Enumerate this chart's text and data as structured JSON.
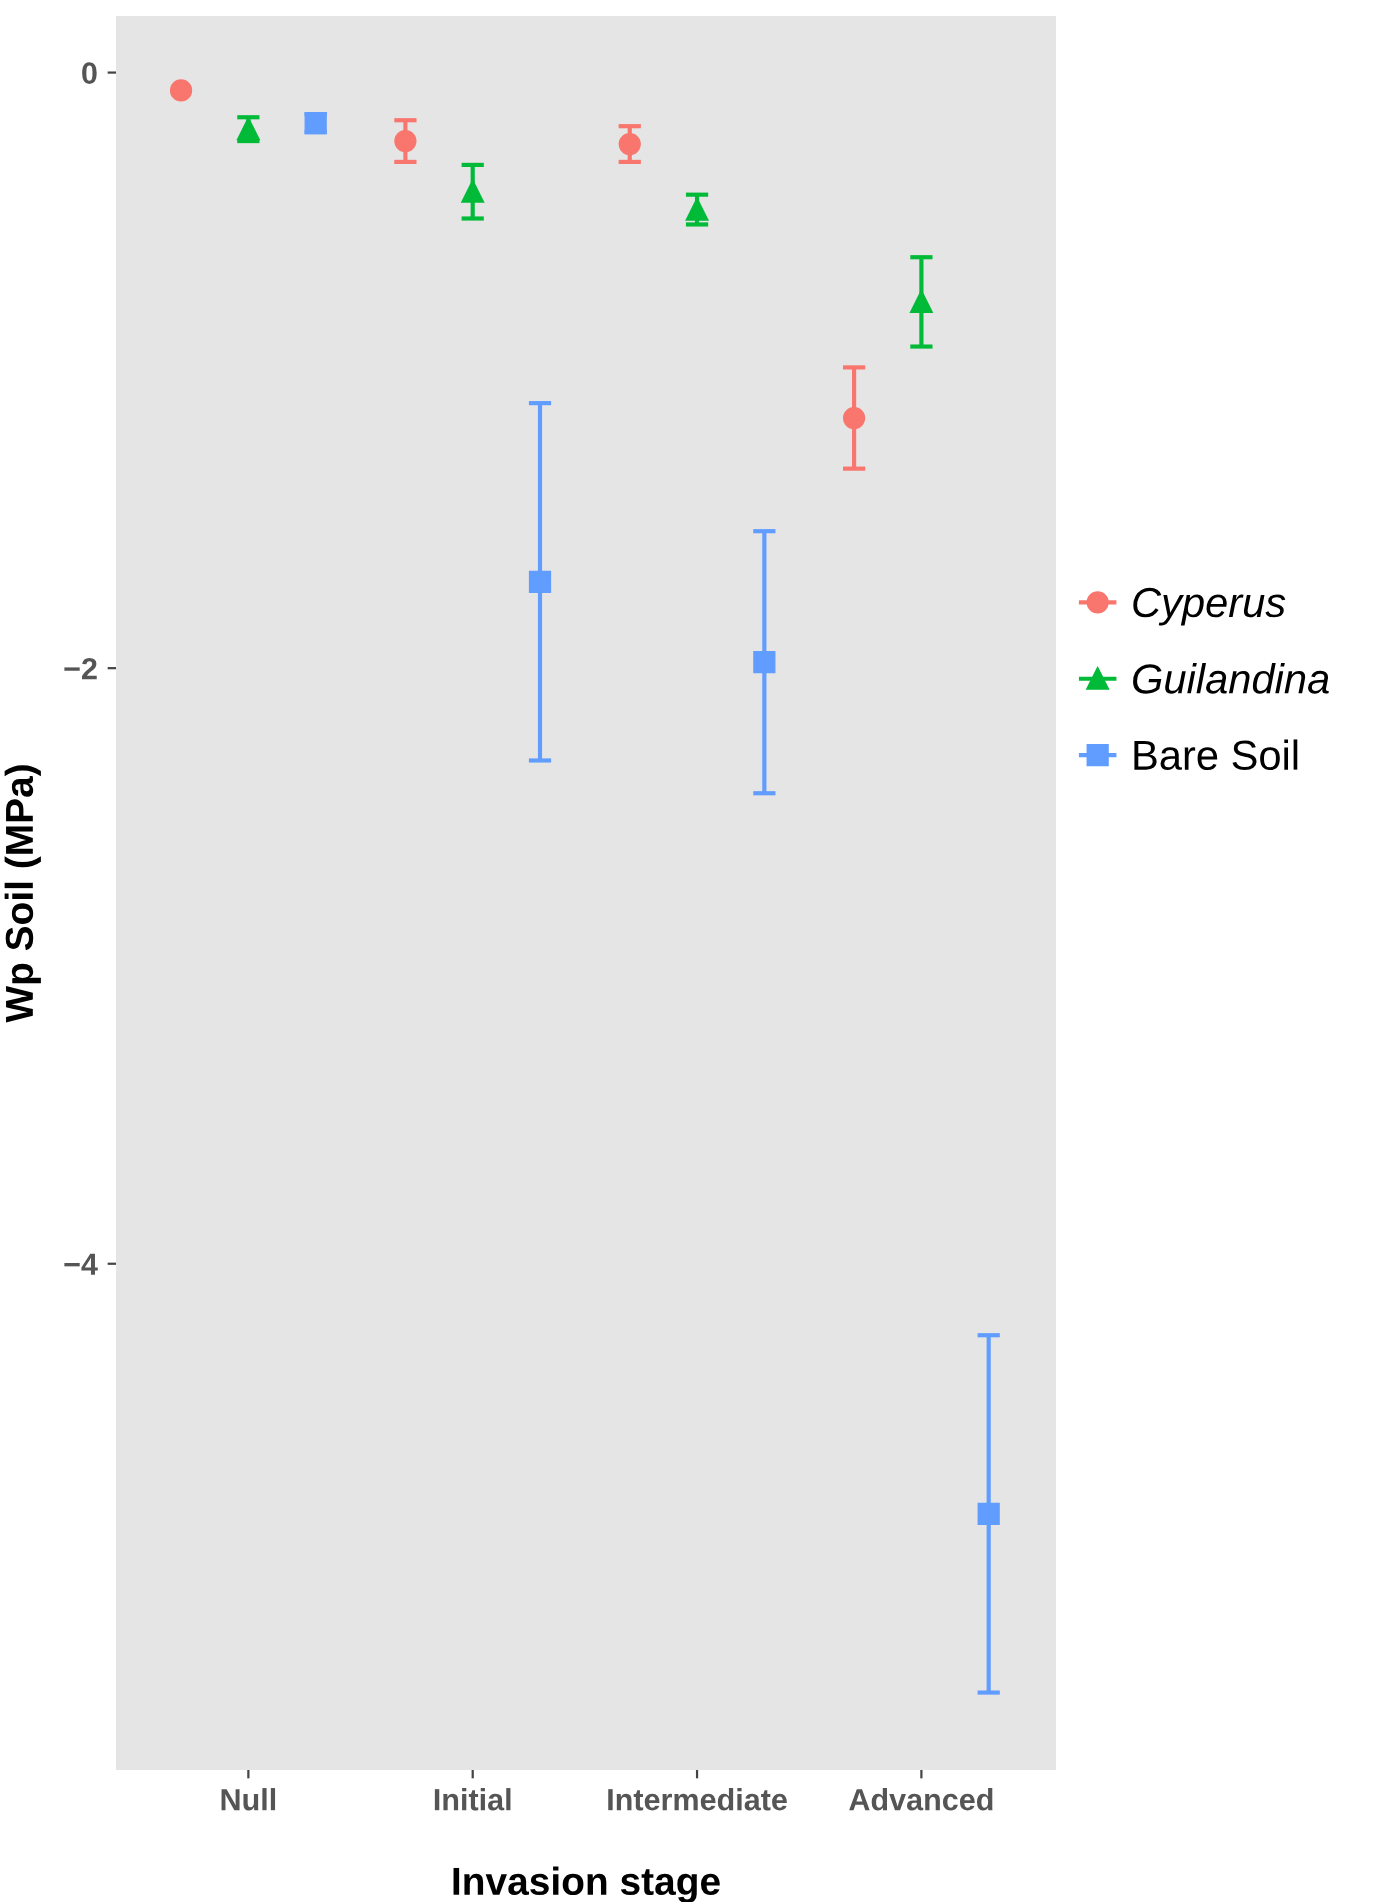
{
  "chart_data": {
    "type": "scatter",
    "xlabel": "Invasion stage",
    "ylabel": "Wp Soil (MPa)",
    "categories": [
      "Null",
      "Initial",
      "Intermediate",
      "Advanced"
    ],
    "series": [
      {
        "name": "Cyperus",
        "color": "#f8766d",
        "marker": "circle",
        "values": [
          -0.06,
          -0.23,
          -0.24,
          -1.16
        ],
        "errors": [
          null,
          0.07,
          0.06,
          0.17
        ]
      },
      {
        "name": "Guilandina",
        "color": "#00ba38",
        "marker": "triangle",
        "values": [
          -0.19,
          -0.4,
          -0.46,
          -0.77
        ],
        "errors": [
          0.04,
          0.09,
          0.05,
          0.15
        ]
      },
      {
        "name": "Bare Soil",
        "color": "#619cff",
        "marker": "square",
        "values": [
          -0.17,
          -1.71,
          -1.98,
          -4.84
        ],
        "errors": [
          0.03,
          0.6,
          0.44,
          0.6
        ]
      }
    ],
    "ylim": [
      -5.7,
      0.19
    ],
    "yticks": [
      {
        "value": -4,
        "label": "−4"
      },
      {
        "value": -2,
        "label": "−2"
      },
      {
        "value": 0,
        "label": "0"
      }
    ],
    "legend": "right",
    "grid": false
  }
}
